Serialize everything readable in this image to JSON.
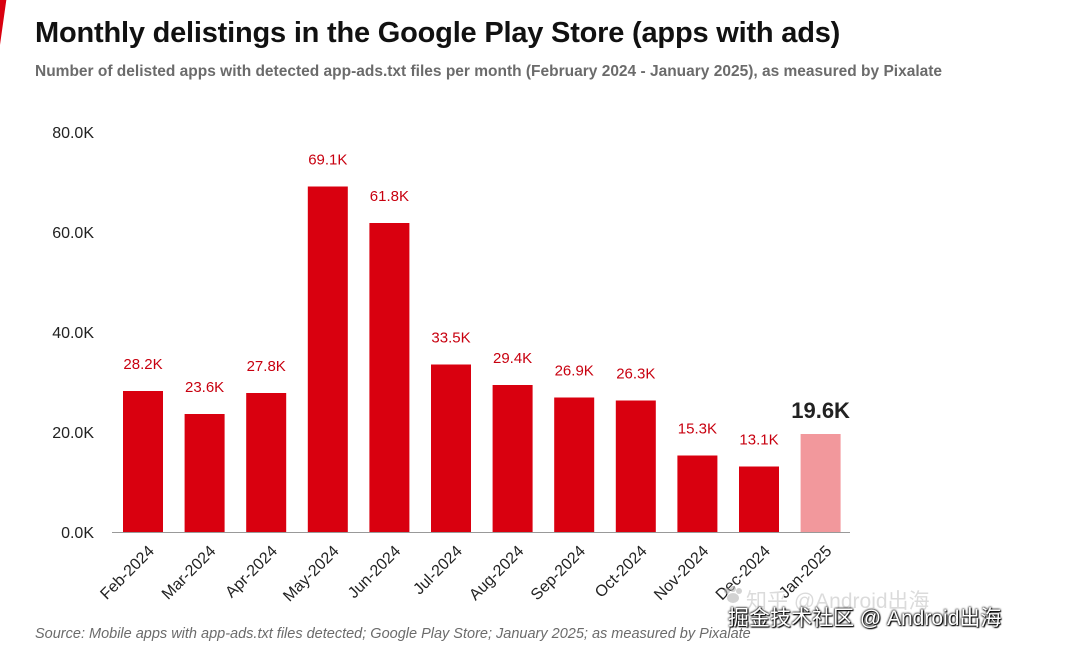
{
  "title": "Monthly delistings in the Google Play Store (apps with ads)",
  "subtitle": "Number of delisted apps with detected app-ads.txt files per month (February 2024 - January 2025), as measured by Pixalate",
  "source": "Source: Mobile apps with app-ads.txt files detected; Google Play Store; January 2025; as measured by Pixalate",
  "watermark": {
    "main": "掘金技术社区 @ Android出海",
    "faint": "知乎 @Android出海"
  },
  "colors": {
    "bar": "#d9000f",
    "highlight_bar": "#f2989c",
    "label": "#c8000f",
    "highlight_label": "#222222",
    "axis_text": "#222222"
  },
  "chart_data": {
    "type": "bar",
    "title": "Monthly delistings in the Google Play Store (apps with ads)",
    "xlabel": "",
    "ylabel": "",
    "categories": [
      "Feb-2024",
      "Mar-2024",
      "Apr-2024",
      "May-2024",
      "Jun-2024",
      "Jul-2024",
      "Aug-2024",
      "Sep-2024",
      "Oct-2024",
      "Nov-2024",
      "Dec-2024",
      "Jan-2025"
    ],
    "values": [
      28.2,
      23.6,
      27.8,
      69.1,
      61.8,
      33.5,
      29.4,
      26.9,
      26.3,
      15.3,
      13.1,
      19.6
    ],
    "value_labels": [
      "28.2K",
      "23.6K",
      "27.8K",
      "69.1K",
      "61.8K",
      "33.5K",
      "29.4K",
      "26.9K",
      "26.3K",
      "15.3K",
      "13.1K",
      "19.6K"
    ],
    "highlight_index": 11,
    "ylim": [
      0,
      80
    ],
    "yticks": [
      0,
      20,
      40,
      60,
      80
    ],
    "ytick_labels": [
      "0.0K",
      "20.0K",
      "40.0K",
      "60.0K",
      "80.0K"
    ],
    "units": "thousands of apps",
    "grid": false
  }
}
